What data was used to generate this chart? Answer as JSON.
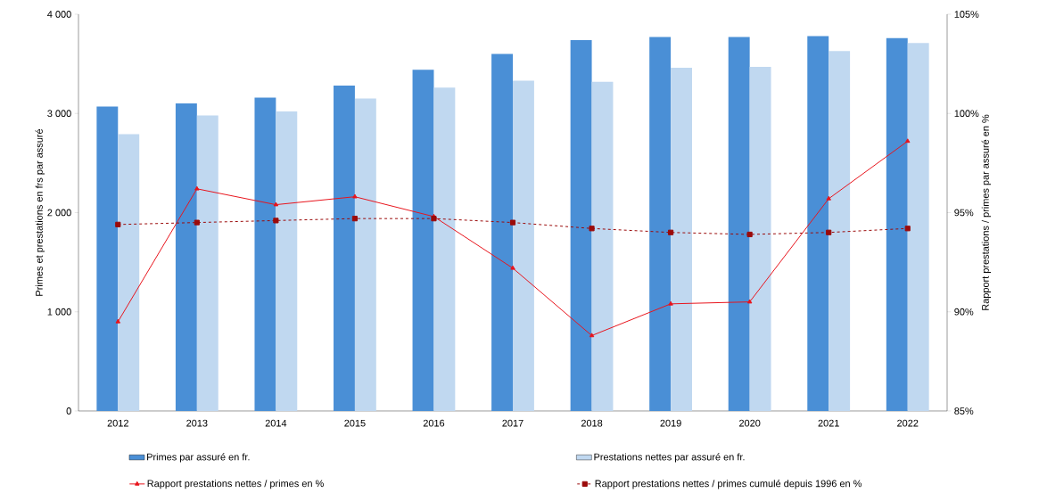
{
  "chart_data": {
    "type": "bar",
    "categories": [
      "2012",
      "2013",
      "2014",
      "2015",
      "2016",
      "2017",
      "2018",
      "2019",
      "2020",
      "2021",
      "2022"
    ],
    "ylabel": "Primes et prestations en frs par assuré",
    "y2label": "Rapport prestations / primes par assuré en %",
    "ylim": [
      0,
      4000
    ],
    "yticks": [
      {
        "value": 0,
        "label": "0"
      },
      {
        "value": 1000,
        "label": "1 000"
      },
      {
        "value": 2000,
        "label": "2 000"
      },
      {
        "value": 3000,
        "label": "3 000"
      },
      {
        "value": 4000,
        "label": "4 000"
      }
    ],
    "y2lim": [
      85,
      105
    ],
    "y2ticks": [
      {
        "value": 85,
        "label": "85%"
      },
      {
        "value": 90,
        "label": "90%"
      },
      {
        "value": 95,
        "label": "95%"
      },
      {
        "value": 100,
        "label": "100%"
      },
      {
        "value": 105,
        "label": "105%"
      }
    ],
    "legend": "bottom",
    "series": [
      {
        "name": "Primes par assuré en fr.",
        "color": "#4a8fd6",
        "values": [
          3070,
          3100,
          3160,
          3280,
          3440,
          3600,
          3740,
          3770,
          3770,
          3780,
          3760
        ]
      },
      {
        "name": "Prestations nettes par assuré en fr.",
        "color": "#c0d8f0",
        "values": [
          2790,
          2980,
          3020,
          3150,
          3260,
          3330,
          3320,
          3460,
          3470,
          3630,
          3710
        ]
      },
      {
        "name": "Rapport prestations nettes / primes en %",
        "type": "line",
        "axis": "y2",
        "color": "#e8141c",
        "marker": "triangle",
        "line_style": "solid",
        "values": [
          89.5,
          96.2,
          95.4,
          95.8,
          94.8,
          92.2,
          88.8,
          90.4,
          90.5,
          95.7,
          98.6
        ]
      },
      {
        "name": "Rapport prestations nettes / primes cumulé depuis 1996 en %",
        "type": "line",
        "axis": "y2",
        "color": "#9b0a0a",
        "marker": "square",
        "line_style": "dashed",
        "values": [
          94.4,
          94.5,
          94.6,
          94.7,
          94.7,
          94.5,
          94.2,
          94.0,
          93.9,
          94.0,
          94.2
        ]
      }
    ]
  }
}
